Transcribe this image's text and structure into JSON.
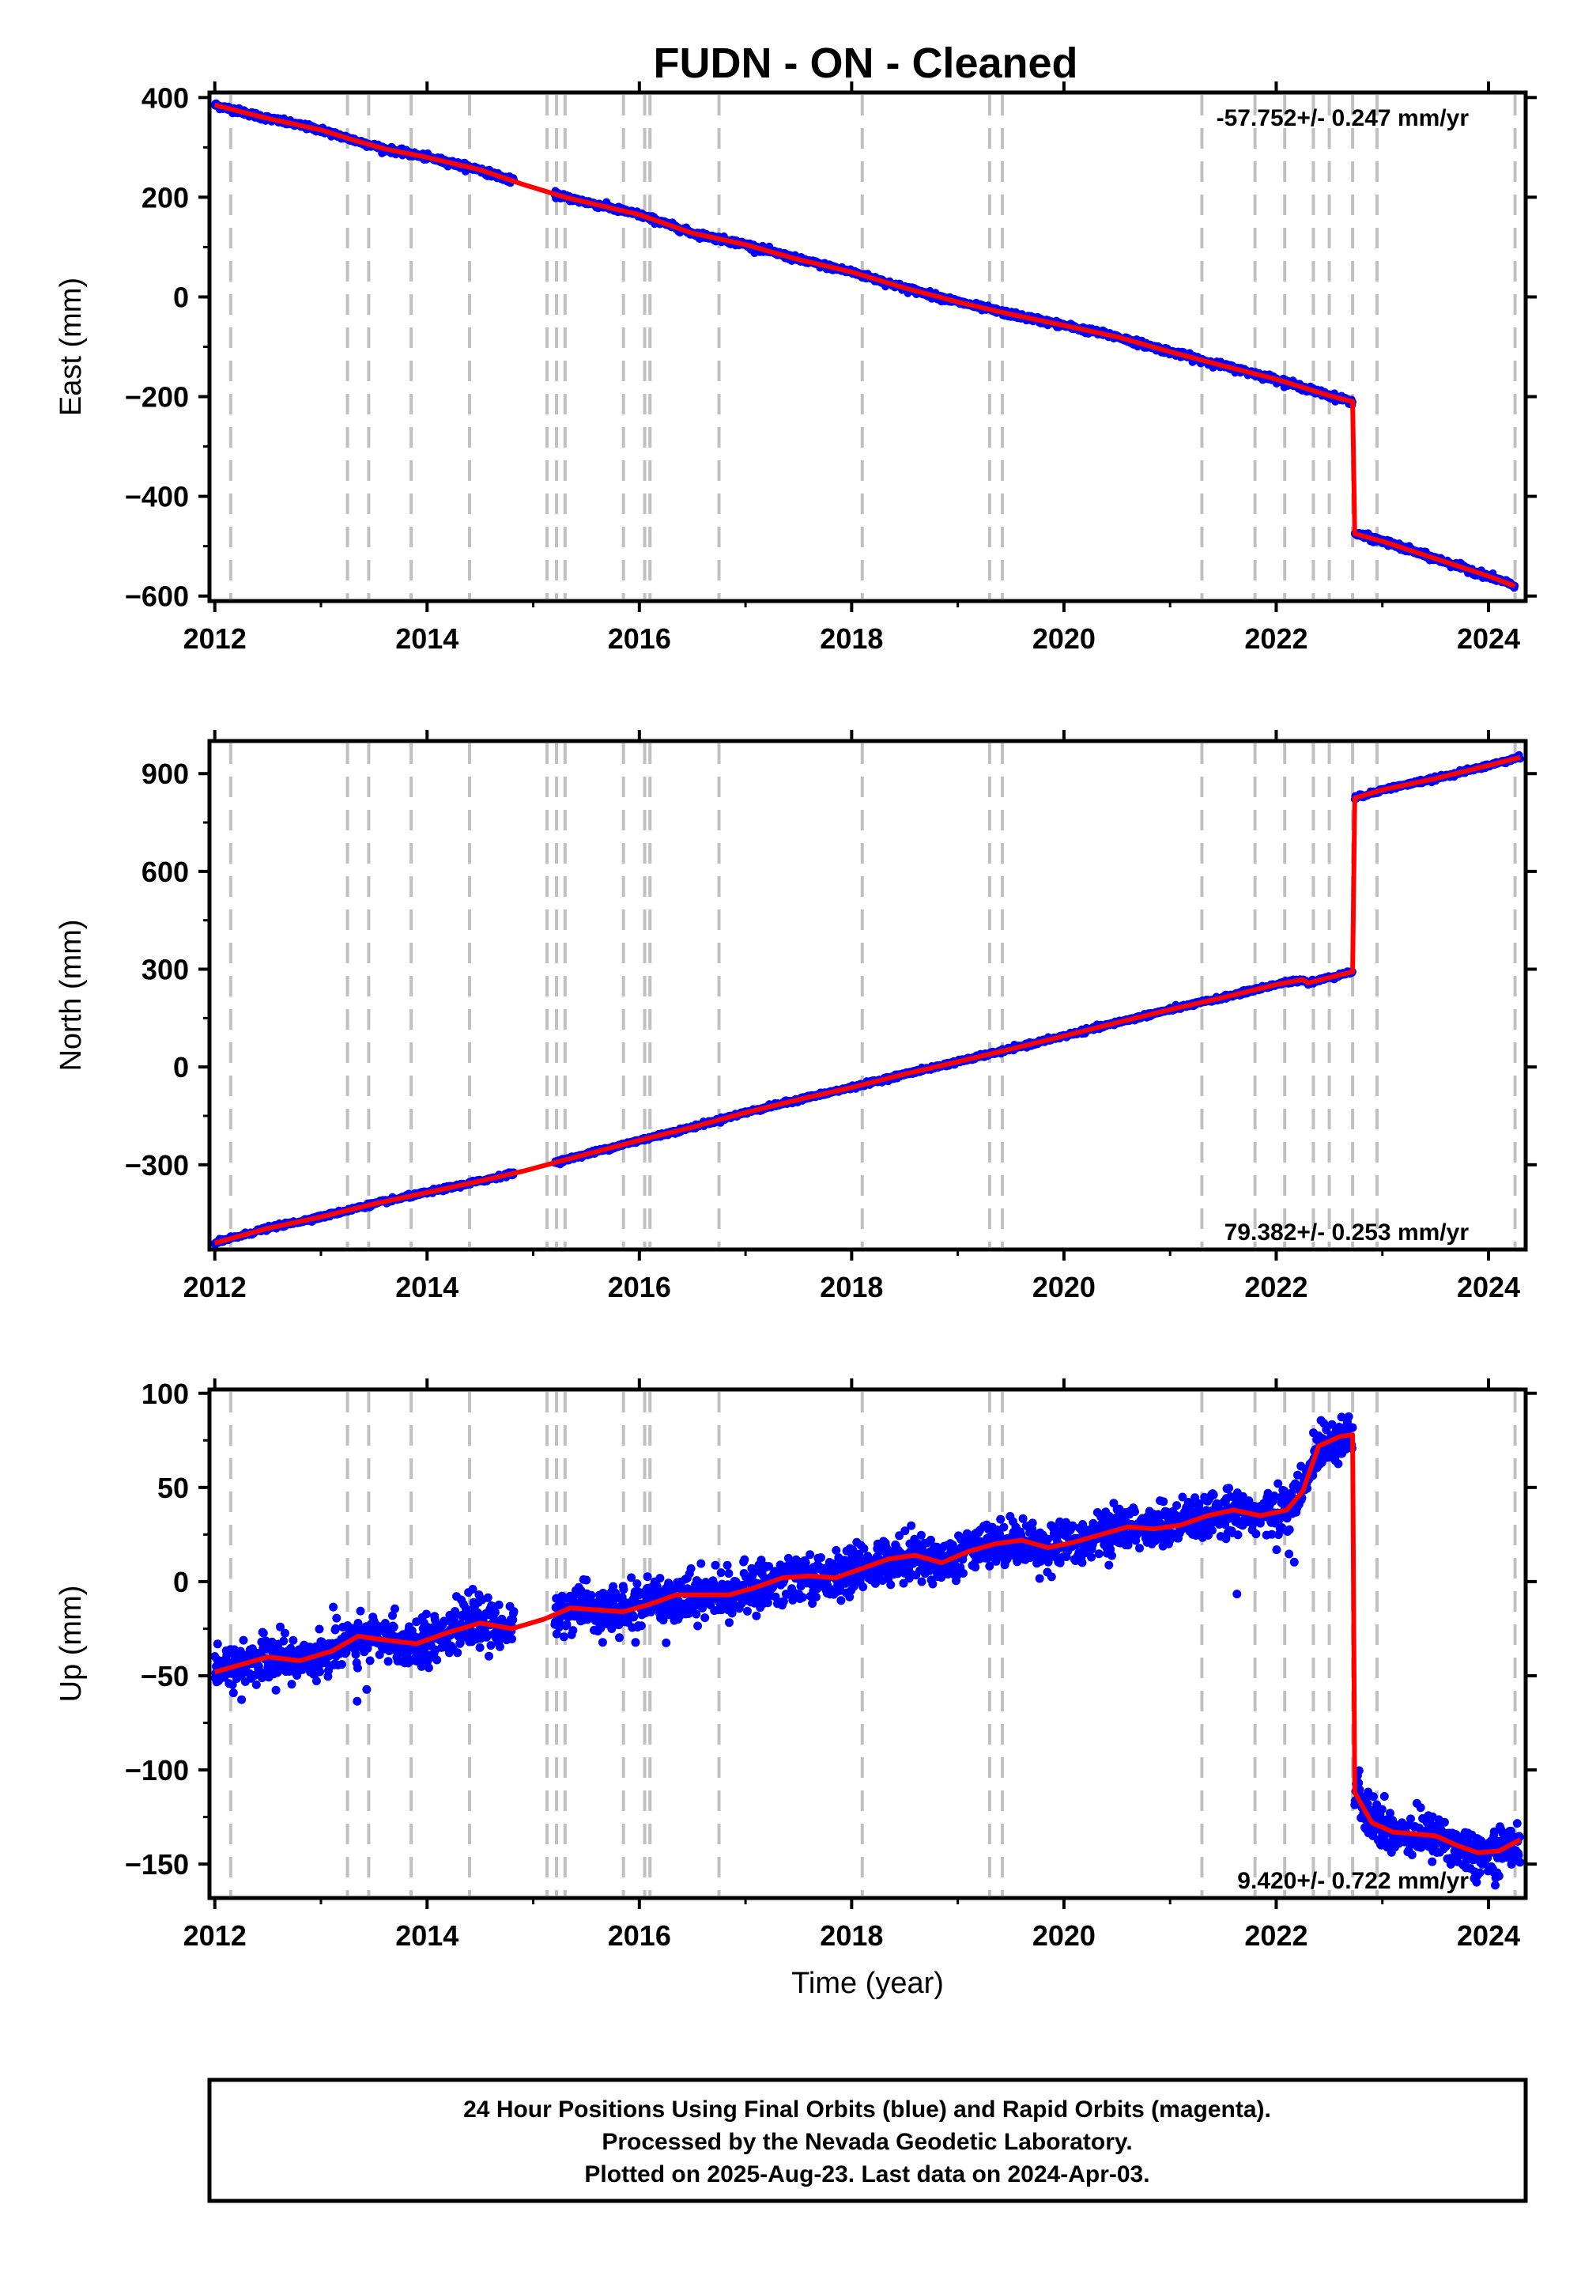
{
  "title": "FUDN  - ON - Cleaned",
  "chart_data": [
    {
      "type": "scatter",
      "panel": "east",
      "ylabel": "East (mm)",
      "xlabel": "",
      "xlim": [
        2011.95,
        2024.35
      ],
      "ylim": [
        -610,
        410
      ],
      "xticks": [
        "2012",
        "2014",
        "2016",
        "2018",
        "2020",
        "2022",
        "2024"
      ],
      "yticks": [
        "400",
        "200",
        "0",
        "−200",
        "−400",
        "−600"
      ],
      "ytick_values": [
        400,
        200,
        0,
        -200,
        -400,
        -600
      ],
      "rate_text": "-57.752+/- 0.247 mm/yr",
      "rate_position": "top-right",
      "series": [
        {
          "x": [
            2012.0,
            2012.5,
            2013.0,
            2013.3,
            2013.6,
            2014.0,
            2014.5,
            2014.9,
            2015.3,
            2015.7,
            2016.0,
            2016.5,
            2017.0,
            2017.5,
            2018.0,
            2018.5,
            2019.0,
            2019.5,
            2020.0,
            2020.5,
            2021.0,
            2021.5,
            2022.0,
            2022.5,
            2022.72
          ],
          "y": [
            385,
            358,
            335,
            315,
            297,
            280,
            255,
            226,
            200,
            180,
            165,
            128,
            105,
            75,
            50,
            18,
            -10,
            -35,
            -57,
            -80,
            -110,
            -138,
            -165,
            -198,
            -210
          ]
        },
        {
          "x": [
            2022.74,
            2023.0,
            2023.5,
            2024.0,
            2024.25
          ],
          "y": [
            -475,
            -490,
            -525,
            -560,
            -580
          ]
        }
      ]
    },
    {
      "type": "scatter",
      "panel": "north",
      "ylabel": "North (mm)",
      "xlabel": "",
      "xlim": [
        2011.95,
        2024.35
      ],
      "ylim": [
        -560,
        1000
      ],
      "xticks": [
        "2012",
        "2014",
        "2016",
        "2018",
        "2020",
        "2022",
        "2024"
      ],
      "yticks": [
        "900",
        "600",
        "300",
        "0",
        "−300"
      ],
      "ytick_values": [
        900,
        600,
        300,
        0,
        -300
      ],
      "rate_text": "79.382+/- 0.253 mm/yr",
      "rate_position": "bottom-right",
      "series": [
        {
          "x": [
            2012.0,
            2012.5,
            2013.0,
            2013.5,
            2014.0,
            2014.5,
            2014.9,
            2015.3,
            2016.0,
            2016.5,
            2017.0,
            2017.5,
            2018.0,
            2018.5,
            2019.0,
            2019.5,
            2020.0,
            2020.5,
            2021.0,
            2021.5,
            2022.0,
            2022.25,
            2022.3,
            2022.72
          ],
          "y": [
            -540,
            -495,
            -460,
            -420,
            -385,
            -350,
            -320,
            -285,
            -225,
            -185,
            -140,
            -100,
            -63,
            -22,
            16,
            55,
            95,
            136,
            176,
            213,
            253,
            268,
            258,
            292
          ]
        },
        {
          "x": [
            2022.74,
            2023.0,
            2023.5,
            2024.0,
            2024.3
          ],
          "y": [
            825,
            850,
            885,
            925,
            950
          ]
        }
      ]
    },
    {
      "type": "scatter",
      "panel": "up",
      "ylabel": "Up (mm)",
      "xlabel": "Time (year)",
      "xlim": [
        2011.95,
        2024.35
      ],
      "ylim": [
        -168,
        102
      ],
      "xticks": [
        "2012",
        "2014",
        "2016",
        "2018",
        "2020",
        "2022",
        "2024"
      ],
      "yticks": [
        "100",
        "50",
        "0",
        "−50",
        "−100",
        "−150"
      ],
      "ytick_values": [
        100,
        50,
        0,
        -50,
        -100,
        -150
      ],
      "rate_text": "9.420+/- 0.722 mm/yr",
      "rate_position": "bottom-right",
      "series": [
        {
          "x": [
            2012.0,
            2012.25,
            2012.5,
            2012.8,
            2013.1,
            2013.35,
            2013.6,
            2013.9,
            2014.2,
            2014.5,
            2014.8,
            2015.1,
            2015.35,
            2015.6,
            2015.85,
            2016.1,
            2016.35,
            2016.6,
            2016.85,
            2017.1,
            2017.35,
            2017.6,
            2017.85,
            2018.1,
            2018.35,
            2018.6,
            2018.85,
            2019.1,
            2019.35,
            2019.6,
            2019.85,
            2020.1,
            2020.35,
            2020.6,
            2020.85,
            2021.1,
            2021.35,
            2021.6,
            2021.85,
            2022.1,
            2022.25,
            2022.4,
            2022.6,
            2022.72
          ],
          "y": [
            -48,
            -44,
            -40,
            -42,
            -37,
            -29,
            -31,
            -33,
            -27,
            -22,
            -25,
            -20,
            -14,
            -15,
            -16,
            -12,
            -7,
            -7,
            -7,
            -3,
            2,
            3,
            2,
            7,
            12,
            14,
            10,
            16,
            20,
            22,
            18,
            21,
            25,
            29,
            28,
            30,
            35,
            38,
            35,
            38,
            48,
            72,
            77,
            78
          ]
        },
        {
          "x": [
            2022.74,
            2022.9,
            2023.1,
            2023.3,
            2023.5,
            2023.7,
            2023.9,
            2024.1,
            2024.3
          ],
          "y": [
            -112,
            -128,
            -133,
            -134,
            -135,
            -140,
            -144,
            -143,
            -137
          ]
        }
      ]
    }
  ],
  "event_lines_x": [
    2012.15,
    2013.25,
    2013.45,
    2013.85,
    2014.4,
    2015.13,
    2015.22,
    2015.3,
    2015.85,
    2016.05,
    2016.1,
    2016.75,
    2018.1,
    2019.3,
    2019.42,
    2021.3,
    2021.8,
    2022.08,
    2022.35,
    2022.5,
    2022.72,
    2022.95,
    2024.25
  ],
  "colors": {
    "final_orbits": "#0000ff",
    "model_fit": "#ff0000",
    "event_line": "#c0c0c0"
  },
  "footer": {
    "line1": "24 Hour Positions Using Final Orbits (blue) and Rapid Orbits (magenta).",
    "line2": "Processed by the Nevada Geodetic Laboratory.",
    "line3": "Plotted on 2025-Aug-23. Last data on 2024-Apr-03."
  }
}
